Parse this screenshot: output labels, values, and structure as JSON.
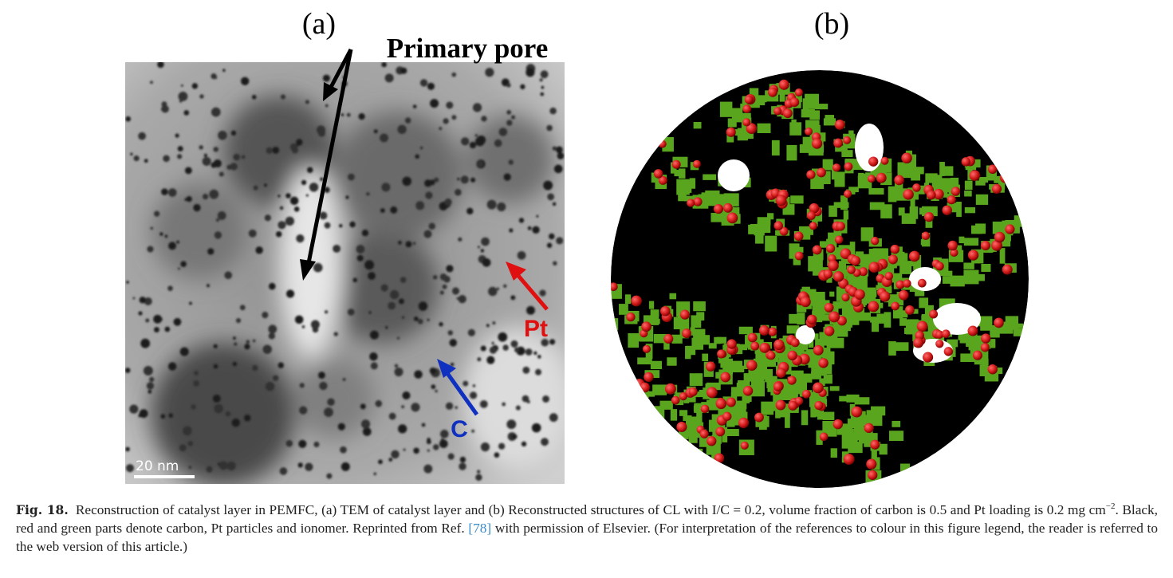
{
  "figure": {
    "panel_a": {
      "label": "(a)",
      "annotation_pore": "Primary pore",
      "annotation_pt": "Pt",
      "annotation_c": "C",
      "scale_bar": "20 nm"
    },
    "panel_b": {
      "label": "(b)"
    },
    "caption": {
      "figure_label": "Fig. 18.",
      "text_1": "Reconstruction of catalyst layer in PEMFC, (a) TEM of catalyst layer and (b) Reconstructed structures of CL with I/C = 0.2, volume fraction of carbon is 0.5 and Pt loading is 0.2 mg cm",
      "superscript": "−2",
      "text_2": ". Black, red and green parts denote carbon, Pt particles and ionomer. Reprinted from Ref. ",
      "reference": "[78]",
      "text_3": " with permission of Elsevier. (For interpretation of the references to colour in this figure legend, the reader is referred to the web version of this article.)"
    }
  }
}
